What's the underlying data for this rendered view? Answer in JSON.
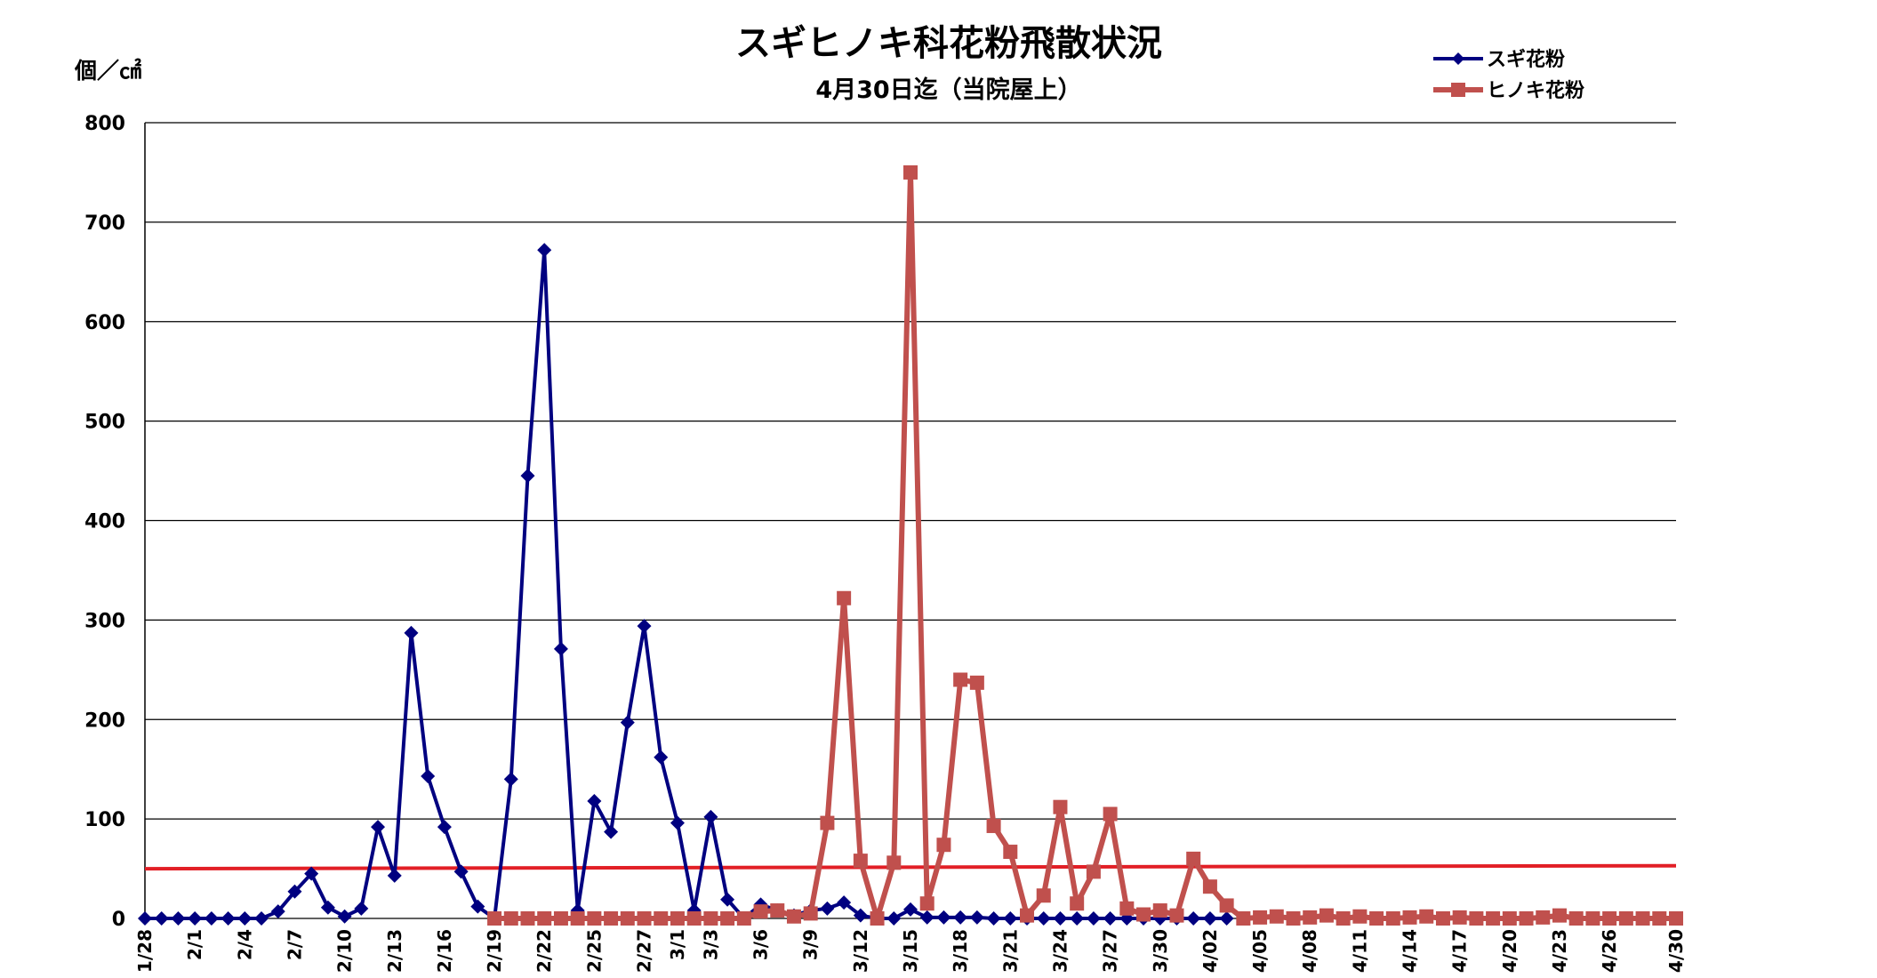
{
  "chart_data": {
    "type": "line",
    "title": "スギヒノキ科花粉飛散状況",
    "subtitle": "4月30日迄（当院屋上）",
    "ylabel": "個／㎠",
    "ylim": [
      0,
      800
    ],
    "yticks": [
      0,
      100,
      200,
      300,
      400,
      500,
      600,
      700,
      800
    ],
    "grid": true,
    "legend_position": "top-right",
    "x_range": [
      "1/28",
      "4/30"
    ],
    "x_tick_labels": [
      {
        "label": "1/28",
        "date": "1/28"
      },
      {
        "label": "2/1",
        "date": "1/31"
      },
      {
        "label": "2/4",
        "date": "2/3"
      },
      {
        "label": "2/7",
        "date": "2/6"
      },
      {
        "label": "2/10",
        "date": "2/9"
      },
      {
        "label": "2/13",
        "date": "2/12"
      },
      {
        "label": "2/16",
        "date": "2/15"
      },
      {
        "label": "2/19",
        "date": "2/18"
      },
      {
        "label": "2/22",
        "date": "2/21"
      },
      {
        "label": "2/25",
        "date": "2/24"
      },
      {
        "label": "2/27",
        "date": "2/27"
      },
      {
        "label": "3/1",
        "date": "3/1"
      },
      {
        "label": "3/3",
        "date": "3/3"
      },
      {
        "label": "3/6",
        "date": "3/6"
      },
      {
        "label": "3/9",
        "date": "3/9"
      },
      {
        "label": "3/12",
        "date": "3/12"
      },
      {
        "label": "3/15",
        "date": "3/15"
      },
      {
        "label": "3/18",
        "date": "3/18"
      },
      {
        "label": "3/21",
        "date": "3/21"
      },
      {
        "label": "3/24",
        "date": "3/24"
      },
      {
        "label": "3/27",
        "date": "3/27"
      },
      {
        "label": "3/30",
        "date": "3/30"
      },
      {
        "label": "4/02",
        "date": "4/2"
      },
      {
        "label": "4/05",
        "date": "4/5"
      },
      {
        "label": "4/08",
        "date": "4/8"
      },
      {
        "label": "4/11",
        "date": "4/11"
      },
      {
        "label": "4/14",
        "date": "4/14"
      },
      {
        "label": "4/17",
        "date": "4/17"
      },
      {
        "label": "4/20",
        "date": "4/20"
      },
      {
        "label": "4/23",
        "date": "4/23"
      },
      {
        "label": "4/26",
        "date": "4/26"
      },
      {
        "label": "4/30",
        "date": "4/30"
      }
    ],
    "reference_line": {
      "color": "#e21f26",
      "values": [
        {
          "x": "1/28",
          "y": 50
        },
        {
          "x": "4/30",
          "y": 53
        }
      ]
    },
    "series": [
      {
        "name": "スギ花粉",
        "color": "#000080",
        "marker": "diamond",
        "points": [
          {
            "x": "1/28",
            "y": 0
          },
          {
            "x": "1/29",
            "y": 0
          },
          {
            "x": "1/30",
            "y": 0
          },
          {
            "x": "1/31",
            "y": 0
          },
          {
            "x": "2/1",
            "y": 0
          },
          {
            "x": "2/2",
            "y": 0
          },
          {
            "x": "2/3",
            "y": 0
          },
          {
            "x": "2/4",
            "y": 0
          },
          {
            "x": "2/5",
            "y": 7
          },
          {
            "x": "2/6",
            "y": 27
          },
          {
            "x": "2/7",
            "y": 45
          },
          {
            "x": "2/8",
            "y": 11
          },
          {
            "x": "2/9",
            "y": 2
          },
          {
            "x": "2/10",
            "y": 10
          },
          {
            "x": "2/11",
            "y": 92
          },
          {
            "x": "2/12",
            "y": 43
          },
          {
            "x": "2/13",
            "y": 287
          },
          {
            "x": "2/14",
            "y": 143
          },
          {
            "x": "2/15",
            "y": 92
          },
          {
            "x": "2/16",
            "y": 47
          },
          {
            "x": "2/17",
            "y": 12
          },
          {
            "x": "2/18",
            "y": 0
          },
          {
            "x": "2/19",
            "y": 140
          },
          {
            "x": "2/20",
            "y": 445
          },
          {
            "x": "2/21",
            "y": 672
          },
          {
            "x": "2/22",
            "y": 271
          },
          {
            "x": "2/23",
            "y": 8
          },
          {
            "x": "2/24",
            "y": 118
          },
          {
            "x": "2/25",
            "y": 87
          },
          {
            "x": "2/26",
            "y": 197
          },
          {
            "x": "2/27",
            "y": 294
          },
          {
            "x": "2/28",
            "y": 162
          },
          {
            "x": "3/1",
            "y": 96
          },
          {
            "x": "3/2",
            "y": 8
          },
          {
            "x": "3/3",
            "y": 102
          },
          {
            "x": "3/4",
            "y": 19
          },
          {
            "x": "3/5",
            "y": 0
          },
          {
            "x": "3/6",
            "y": 14
          },
          {
            "x": "3/7",
            "y": 8
          },
          {
            "x": "3/8",
            "y": 3
          },
          {
            "x": "3/9",
            "y": 8
          },
          {
            "x": "3/10",
            "y": 10
          },
          {
            "x": "3/11",
            "y": 16
          },
          {
            "x": "3/12",
            "y": 3
          },
          {
            "x": "3/13",
            "y": 0
          },
          {
            "x": "3/14",
            "y": 0
          },
          {
            "x": "3/15",
            "y": 9
          },
          {
            "x": "3/16",
            "y": 1
          },
          {
            "x": "3/17",
            "y": 1
          },
          {
            "x": "3/18",
            "y": 1
          },
          {
            "x": "3/19",
            "y": 1
          },
          {
            "x": "3/20",
            "y": 0
          },
          {
            "x": "3/21",
            "y": 0
          },
          {
            "x": "3/22",
            "y": 0
          },
          {
            "x": "3/23",
            "y": 0
          },
          {
            "x": "3/24",
            "y": 0
          },
          {
            "x": "3/25",
            "y": 0
          },
          {
            "x": "3/26",
            "y": 0
          },
          {
            "x": "3/27",
            "y": 0
          },
          {
            "x": "3/28",
            "y": 0
          },
          {
            "x": "3/29",
            "y": 0
          },
          {
            "x": "3/30",
            "y": 0
          },
          {
            "x": "3/31",
            "y": 0
          },
          {
            "x": "4/1",
            "y": 0
          },
          {
            "x": "4/2",
            "y": 0
          },
          {
            "x": "4/3",
            "y": 0
          }
        ]
      },
      {
        "name": "ヒノキ花粉",
        "color": "#c0504d",
        "marker": "square",
        "points": [
          {
            "x": "2/18",
            "y": 0
          },
          {
            "x": "2/19",
            "y": 0
          },
          {
            "x": "2/20",
            "y": 0
          },
          {
            "x": "2/21",
            "y": 0
          },
          {
            "x": "2/22",
            "y": 0
          },
          {
            "x": "2/23",
            "y": 0
          },
          {
            "x": "2/24",
            "y": 0
          },
          {
            "x": "2/25",
            "y": 0
          },
          {
            "x": "2/26",
            "y": 0
          },
          {
            "x": "2/27",
            "y": 0
          },
          {
            "x": "2/28",
            "y": 0
          },
          {
            "x": "3/1",
            "y": 0
          },
          {
            "x": "3/2",
            "y": 0
          },
          {
            "x": "3/3",
            "y": 0
          },
          {
            "x": "3/4",
            "y": 0
          },
          {
            "x": "3/5",
            "y": 0
          },
          {
            "x": "3/6",
            "y": 7
          },
          {
            "x": "3/7",
            "y": 8
          },
          {
            "x": "3/8",
            "y": 2
          },
          {
            "x": "3/9",
            "y": 5
          },
          {
            "x": "3/10",
            "y": 96
          },
          {
            "x": "3/11",
            "y": 322
          },
          {
            "x": "3/12",
            "y": 58
          },
          {
            "x": "3/13",
            "y": 0
          },
          {
            "x": "3/14",
            "y": 56
          },
          {
            "x": "3/15",
            "y": 750
          },
          {
            "x": "3/16",
            "y": 15
          },
          {
            "x": "3/17",
            "y": 74
          },
          {
            "x": "3/18",
            "y": 240
          },
          {
            "x": "3/19",
            "y": 237
          },
          {
            "x": "3/20",
            "y": 93
          },
          {
            "x": "3/21",
            "y": 67
          },
          {
            "x": "3/22",
            "y": 3
          },
          {
            "x": "3/23",
            "y": 23
          },
          {
            "x": "3/24",
            "y": 112
          },
          {
            "x": "3/25",
            "y": 15
          },
          {
            "x": "3/26",
            "y": 47
          },
          {
            "x": "3/27",
            "y": 105
          },
          {
            "x": "3/28",
            "y": 10
          },
          {
            "x": "3/29",
            "y": 4
          },
          {
            "x": "3/30",
            "y": 8
          },
          {
            "x": "3/31",
            "y": 3
          },
          {
            "x": "4/1",
            "y": 60
          },
          {
            "x": "4/2",
            "y": 32
          },
          {
            "x": "4/3",
            "y": 13
          },
          {
            "x": "4/4",
            "y": 0
          },
          {
            "x": "4/5",
            "y": 1
          },
          {
            "x": "4/6",
            "y": 2
          },
          {
            "x": "4/7",
            "y": 0
          },
          {
            "x": "4/8",
            "y": 1
          },
          {
            "x": "4/9",
            "y": 3
          },
          {
            "x": "4/10",
            "y": 0
          },
          {
            "x": "4/11",
            "y": 2
          },
          {
            "x": "4/12",
            "y": 0
          },
          {
            "x": "4/13",
            "y": 0
          },
          {
            "x": "4/14",
            "y": 1
          },
          {
            "x": "4/15",
            "y": 2
          },
          {
            "x": "4/16",
            "y": 0
          },
          {
            "x": "4/17",
            "y": 1
          },
          {
            "x": "4/18",
            "y": 0
          },
          {
            "x": "4/19",
            "y": 0
          },
          {
            "x": "4/20",
            "y": 0
          },
          {
            "x": "4/21",
            "y": 0
          },
          {
            "x": "4/22",
            "y": 1
          },
          {
            "x": "4/23",
            "y": 3
          },
          {
            "x": "4/24",
            "y": 0
          },
          {
            "x": "4/25",
            "y": 0
          },
          {
            "x": "4/26",
            "y": 0
          },
          {
            "x": "4/27",
            "y": 0
          },
          {
            "x": "4/28",
            "y": 0
          },
          {
            "x": "4/29",
            "y": 0
          },
          {
            "x": "4/30",
            "y": 0
          }
        ]
      }
    ]
  }
}
